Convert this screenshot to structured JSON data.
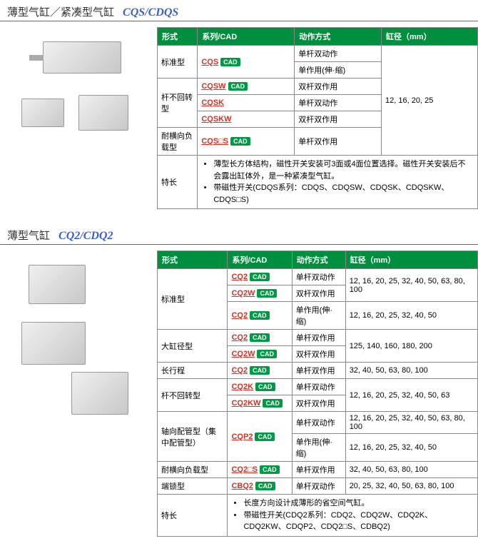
{
  "section1": {
    "title_cn": "薄型气缸／紧凑型气缸",
    "title_en": "CQS/CDQS",
    "headers": {
      "c1": "形式",
      "c2": "系列/CAD",
      "c3": "动作方式",
      "c4": "缸径（mm）"
    },
    "rows": [
      {
        "type": "标准型",
        "series": "CQS",
        "cad": true,
        "action": "单杆双动作",
        "rowspan_type": 2,
        "bore_span": 5
      },
      {
        "type": "",
        "series": "",
        "cad": false,
        "action": "单作用(伸·缩)"
      },
      {
        "type": "杆不回转型",
        "series": "CQSW",
        "cad": true,
        "action": "双杆双作用",
        "rowspan_type": 3
      },
      {
        "type": "",
        "series": "CQSK",
        "cad": false,
        "action": "单杆双动作"
      },
      {
        "type": "",
        "series": "CQSKW",
        "cad": false,
        "action": "双杆双作用"
      },
      {
        "type": "耐横向负载型",
        "series": "CQS□S",
        "cad": true,
        "action": "单杆双作用"
      }
    ],
    "bore": "12, 16, 20, 25",
    "feature_label": "特长",
    "features": [
      "薄型长方体结构，磁性开关安装可3面或4面位置选择。磁性开关安装后不会露出缸体外，是一种紧凑型气缸。",
      "带磁性开关(CDQS系列：CDQS、CDQSW、CDQSK、CDQSKW、CDQS□S)"
    ]
  },
  "section2": {
    "title_cn": "薄型气缸",
    "title_en": "CQ2/CDQ2",
    "headers": {
      "c1": "形式",
      "c2": "系列/CAD",
      "c3": "动作方式",
      "c4": "缸径（mm）"
    },
    "rows": [
      {
        "type": "标准型",
        "series": "CQ2",
        "cad": true,
        "action": "单杆双动作",
        "bore": "12, 16, 20, 25, 32, 40, 50, 63, 80, 100",
        "rowspan_type": 3,
        "rowspan_bore": 2
      },
      {
        "type": "",
        "series": "CQ2W",
        "cad": true,
        "action": "双杆双作用",
        "bore": ""
      },
      {
        "type": "",
        "series": "CQ2",
        "cad": true,
        "action": "单作用(伸·缩)",
        "bore": "12, 16, 20, 25, 32, 40, 50"
      },
      {
        "type": "大缸径型",
        "series": "CQ2",
        "cad": true,
        "action": "单杆双作用",
        "bore": "125, 140, 160, 180, 200",
        "rowspan_type": 2,
        "rowspan_bore": 2
      },
      {
        "type": "",
        "series": "CQ2W",
        "cad": true,
        "action": "双杆双作用",
        "bore": ""
      },
      {
        "type": "长行程",
        "series": "CQ2",
        "cad": true,
        "action": "单杆双作用",
        "bore": "32, 40, 50, 63, 80, 100"
      },
      {
        "type": "杆不回转型",
        "series": "CQ2K",
        "cad": true,
        "action": "单杆双动作",
        "bore": "12, 16, 20, 25, 32, 40, 50, 63",
        "rowspan_type": 2,
        "rowspan_bore": 2
      },
      {
        "type": "",
        "series": "CQ2KW",
        "cad": true,
        "action": "双杆双作用",
        "bore": ""
      },
      {
        "type": "轴向配管型（集中配管型）",
        "series": "CQP2",
        "cad": true,
        "action": "单杆双动作",
        "bore": "12, 16, 20, 25, 32, 40, 50, 63, 80, 100",
        "rowspan_type": 2
      },
      {
        "type": "",
        "series": "",
        "cad": false,
        "action": "单作用(伸·缩)",
        "bore": "12, 16, 20, 25, 32, 40, 50"
      },
      {
        "type": "耐横向负载型",
        "series": "CQ2□S",
        "cad": true,
        "action": "单杆双作用",
        "bore": "32, 40, 50, 63, 80, 100"
      },
      {
        "type": "端锁型",
        "series": "CBQ2",
        "cad": true,
        "action": "单杆双动作",
        "bore": "20, 25, 32, 40, 50, 63, 80, 100"
      }
    ],
    "feature_label": "特长",
    "features": [
      "长度方向设计成薄形的省空间气缸。",
      "带磁性开关(CDQ2系列：CDQ2、CDQ2W、CDQ2K、CDQ2KW、CDQP2、CDQ2□S、CDBQ2)"
    ]
  },
  "cad_label": "CAD"
}
